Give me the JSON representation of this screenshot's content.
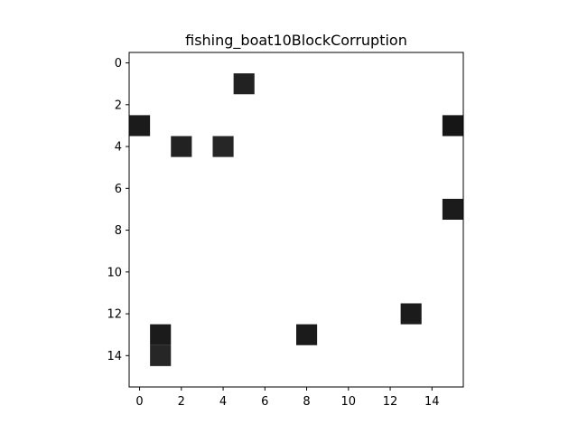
{
  "chart_data": {
    "type": "heatmap",
    "title": "fishing_boat10BlockCorruption",
    "xlabel": "",
    "ylabel": "",
    "rows": 16,
    "cols": 16,
    "xlim": [
      -0.5,
      15.5
    ],
    "ylim": [
      15.5,
      -0.5
    ],
    "y_axis_inverted": true,
    "grid": false,
    "background_value_color": "#ffffff",
    "x_ticks": [
      0,
      2,
      4,
      6,
      8,
      10,
      12,
      14
    ],
    "y_ticks": [
      0,
      2,
      4,
      6,
      8,
      10,
      12,
      14
    ],
    "corrupted_cells": [
      {
        "x": 5,
        "y": 1,
        "color": "#222222"
      },
      {
        "x": 0,
        "y": 3,
        "color": "#1b1b1b"
      },
      {
        "x": 15,
        "y": 3,
        "color": "#161616"
      },
      {
        "x": 2,
        "y": 4,
        "color": "#222222"
      },
      {
        "x": 4,
        "y": 4,
        "color": "#262626"
      },
      {
        "x": 15,
        "y": 7,
        "color": "#1b1b1b"
      },
      {
        "x": 13,
        "y": 12,
        "color": "#1b1b1b"
      },
      {
        "x": 8,
        "y": 13,
        "color": "#1b1b1b"
      },
      {
        "x": 1,
        "y": 13,
        "color": "#1b1b1b"
      },
      {
        "x": 1,
        "y": 14,
        "color": "#262626"
      }
    ]
  }
}
